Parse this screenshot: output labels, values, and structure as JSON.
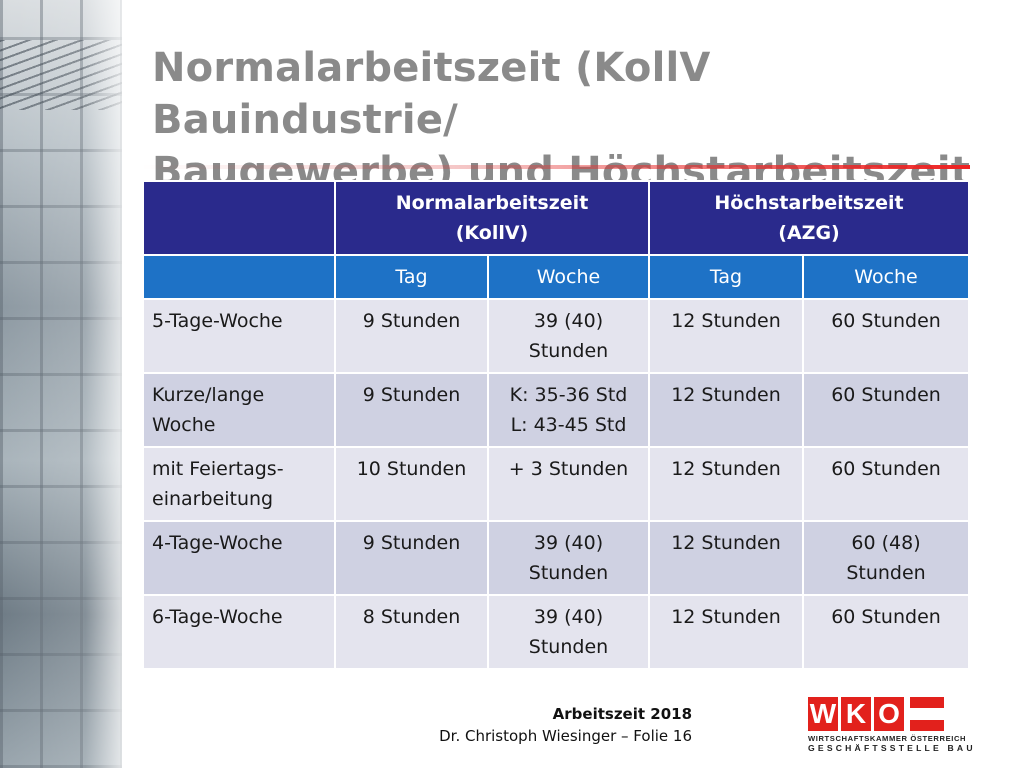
{
  "title": {
    "line1": "Normalarbeitszeit (KollV Bauindustrie/",
    "line2": "Baugewerbe) und Höchstarbeitszeit"
  },
  "table": {
    "group_headers": [
      {
        "line1": "Normalarbeitszeit",
        "line2": "(KollV)"
      },
      {
        "line1": "Höchstarbeitszeit",
        "line2": "(AZG)"
      }
    ],
    "sub_headers": [
      "Tag",
      "Woche",
      "Tag",
      "Woche"
    ],
    "rows": [
      {
        "label": [
          "5-Tage-Woche"
        ],
        "cells": [
          [
            "9 Stunden"
          ],
          [
            "39 (40)",
            "Stunden"
          ],
          [
            "12 Stunden"
          ],
          [
            "60 Stunden"
          ]
        ]
      },
      {
        "label": [
          "Kurze/lange",
          "Woche"
        ],
        "cells": [
          [
            "9 Stunden"
          ],
          [
            "K: 35-36 Std",
            "L: 43-45 Std"
          ],
          [
            "12 Stunden"
          ],
          [
            "60 Stunden"
          ]
        ]
      },
      {
        "label": [
          "mit Feiertags-",
          "einarbeitung"
        ],
        "cells": [
          [
            "10 Stunden"
          ],
          [
            "+ 3 Stunden"
          ],
          [
            "12 Stunden"
          ],
          [
            "60 Stunden"
          ]
        ]
      },
      {
        "label": [
          "4-Tage-Woche"
        ],
        "cells": [
          [
            "9 Stunden"
          ],
          [
            "39 (40)",
            "Stunden"
          ],
          [
            "12 Stunden"
          ],
          [
            "60 (48)",
            "Stunden"
          ]
        ]
      },
      {
        "label": [
          "6-Tage-Woche"
        ],
        "cells": [
          [
            "8 Stunden"
          ],
          [
            "39 (40)",
            "Stunden"
          ],
          [
            "12 Stunden"
          ],
          [
            "60 Stunden"
          ]
        ]
      }
    ]
  },
  "footer": {
    "line1": "Arbeitszeit 2018",
    "line2": "Dr. Christoph Wiesinger – Folie 16"
  },
  "logo": {
    "letters": [
      "W",
      "K",
      "O"
    ],
    "sub1": "WIRTSCHAFTSKAMMER ÖSTERREICH",
    "sub2": "GESCHÄFTSSTELLE BAU"
  },
  "colors": {
    "header_dark": "#2a2a8c",
    "header_blue": "#1e72c6",
    "row_light": "#e4e4ee",
    "row_dark": "#cfd1e2",
    "title_gray": "#8a8a8a",
    "wko_red": "#e2211c"
  }
}
